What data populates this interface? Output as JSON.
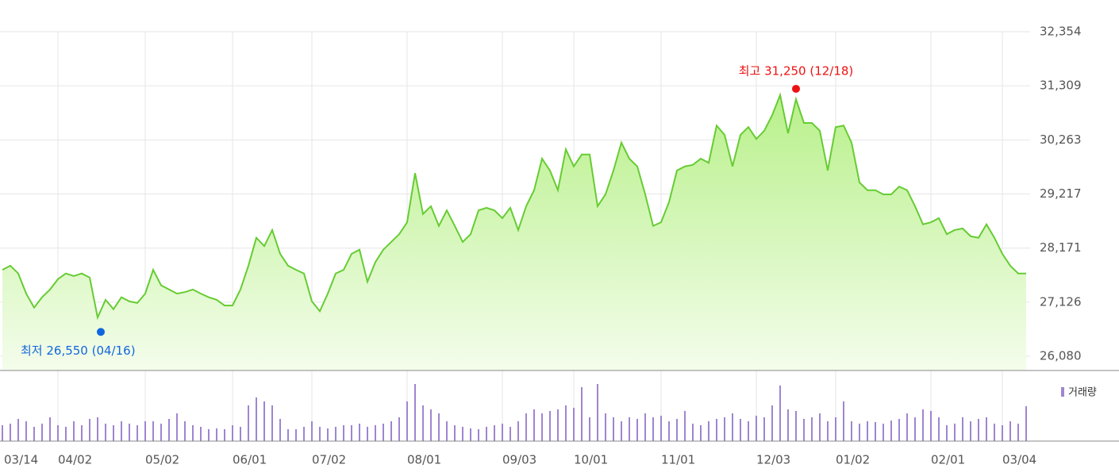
{
  "chart_data": {
    "type": "line",
    "categories": [
      "03/14",
      null,
      null,
      null,
      null,
      null,
      null,
      "04/02",
      null,
      null,
      null,
      null,
      null,
      null,
      null,
      null,
      null,
      null,
      "05/02",
      null,
      null,
      null,
      null,
      null,
      null,
      null,
      null,
      null,
      null,
      "06/01",
      null,
      null,
      null,
      null,
      null,
      null,
      null,
      null,
      null,
      "07/02",
      null,
      null,
      null,
      null,
      null,
      null,
      null,
      null,
      null,
      null,
      null,
      "08/01",
      null,
      null,
      null,
      null,
      null,
      null,
      null,
      null,
      null,
      null,
      null,
      "09/03",
      null,
      null,
      null,
      null,
      null,
      null,
      null,
      null,
      "10/01",
      null,
      null,
      null,
      null,
      null,
      null,
      null,
      null,
      null,
      null,
      "11/01",
      null,
      null,
      null,
      null,
      null,
      null,
      null,
      null,
      null,
      null,
      null,
      "12/03",
      null,
      null,
      null,
      null,
      null,
      null,
      null,
      null,
      null,
      "01/02",
      null,
      null,
      null,
      null,
      null,
      null,
      null,
      null,
      null,
      null,
      null,
      "02/01",
      null,
      null,
      null,
      null,
      null,
      null,
      null,
      null,
      "03/04",
      null,
      null,
      null
    ],
    "series": [
      {
        "name": "price",
        "color": "#66cc33",
        "values": [
          27750,
          27830,
          27680,
          27290,
          27020,
          27220,
          27370,
          27570,
          27680,
          27630,
          27680,
          27600,
          26830,
          27170,
          26990,
          27220,
          27140,
          27110,
          27290,
          27750,
          27450,
          27370,
          27290,
          27320,
          27370,
          27290,
          27220,
          27170,
          27060,
          27060,
          27370,
          27830,
          28370,
          28210,
          28520,
          28060,
          27830,
          27750,
          27680,
          27140,
          26950,
          27290,
          27680,
          27750,
          28060,
          28140,
          27520,
          27900,
          28140,
          28290,
          28440,
          28670,
          29620,
          28830,
          28980,
          28600,
          28900,
          28600,
          28290,
          28440,
          28900,
          28950,
          28900,
          28750,
          28950,
          28520,
          28980,
          29290,
          29900,
          29670,
          29290,
          30080,
          29750,
          29980,
          29980,
          28980,
          29210,
          29670,
          30210,
          29900,
          29750,
          29210,
          28600,
          28670,
          29060,
          29670,
          29750,
          29780,
          29900,
          29820,
          30540,
          30360,
          29750,
          30360,
          30510,
          30280,
          30440,
          30740,
          31130,
          30390,
          31050,
          30590,
          30590,
          30440,
          29670,
          30510,
          30540,
          30210,
          29440,
          29290,
          29290,
          29210,
          29210,
          29360,
          29290,
          28980,
          28630,
          28670,
          28750,
          28440,
          28520,
          28550,
          28400,
          28370,
          28630,
          28370,
          28060,
          27830,
          27680,
          27680
        ]
      }
    ],
    "volume": {
      "name": "거래량",
      "color": "#a085d0",
      "ylim": [
        0,
        80
      ],
      "values": [
        20,
        22,
        28,
        25,
        18,
        22,
        30,
        20,
        18,
        25,
        20,
        28,
        30,
        22,
        20,
        25,
        22,
        20,
        25,
        25,
        22,
        28,
        35,
        25,
        20,
        18,
        15,
        16,
        15,
        20,
        18,
        45,
        55,
        50,
        45,
        28,
        15,
        15,
        18,
        25,
        18,
        16,
        18,
        20,
        20,
        22,
        18,
        20,
        22,
        25,
        30,
        50,
        72,
        45,
        40,
        35,
        25,
        20,
        18,
        16,
        15,
        18,
        20,
        22,
        18,
        25,
        35,
        40,
        35,
        38,
        40,
        45,
        42,
        68,
        30,
        72,
        35,
        30,
        25,
        30,
        28,
        35,
        30,
        32,
        25,
        28,
        38,
        22,
        20,
        25,
        28,
        30,
        35,
        28,
        25,
        32,
        30,
        45,
        70,
        40,
        38,
        28,
        30,
        35,
        25,
        30,
        50,
        25,
        22,
        25,
        24,
        22,
        26,
        28,
        35,
        30,
        40,
        38,
        30,
        20,
        22,
        30,
        25,
        28,
        30,
        22,
        20,
        25,
        22,
        44
      ]
    },
    "ylim": [
      25804,
      32354
    ],
    "yticks": [
      {
        "value": 32354,
        "label": "32,354"
      },
      {
        "value": 31309,
        "label": "31,309"
      },
      {
        "value": 30263,
        "label": "30,263"
      },
      {
        "value": 29217,
        "label": "29,217"
      },
      {
        "value": 28171,
        "label": "28,171"
      },
      {
        "value": 27126,
        "label": "27,126"
      },
      {
        "value": 26080,
        "label": "26,080"
      }
    ],
    "high": {
      "text": "최고 31,250 (12/18)",
      "value": 31250,
      "color": "#ee1111"
    },
    "low": {
      "text": "최저 26,550 (04/16)",
      "value": 26550,
      "color": "#1166dd"
    },
    "grid": true
  }
}
